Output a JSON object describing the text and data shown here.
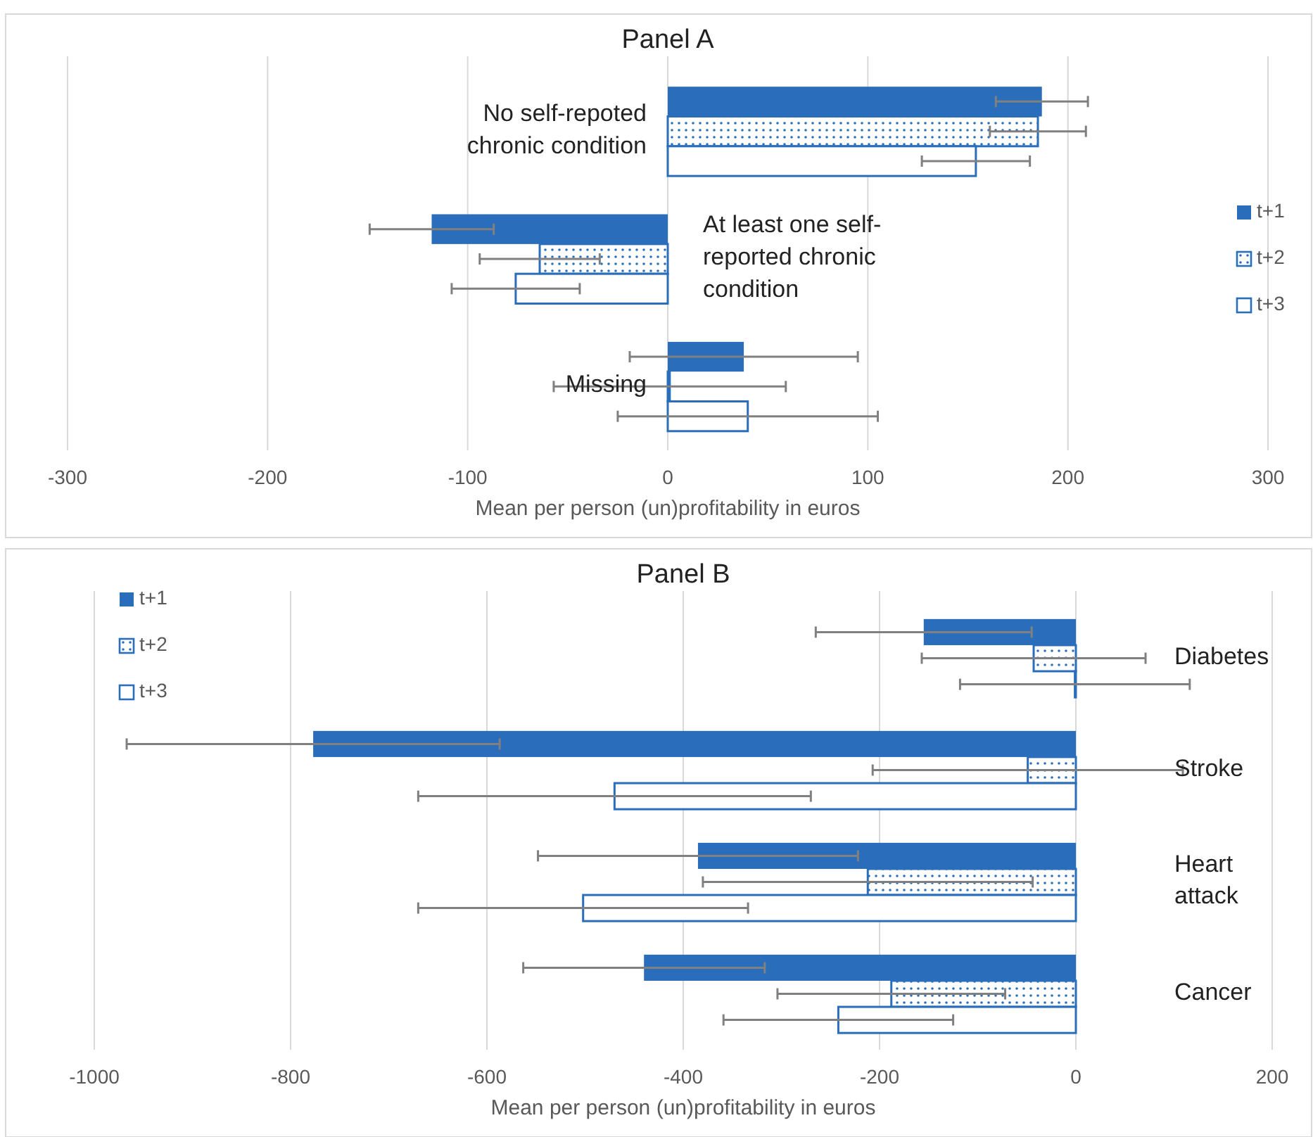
{
  "chart_data": [
    {
      "type": "bar",
      "orientation": "horizontal",
      "title": "Panel A",
      "xlabel": "Mean per person (un)profitability in euros",
      "categories": [
        "No self-repoted chronic condition",
        "At least one self-reported chronic condition",
        "Missing"
      ],
      "series": [
        {
          "name": "t+1",
          "color": "#2a6ebb",
          "values": [
            187,
            -118,
            38
          ],
          "errors": [
            23,
            31,
            57
          ]
        },
        {
          "name": "t+2",
          "color": "#2a6ebb",
          "values": [
            185,
            -64,
            1
          ],
          "errors": [
            24,
            30,
            58
          ]
        },
        {
          "name": "t+3",
          "color": "#2a6ebb",
          "values": [
            154,
            -76,
            40
          ],
          "errors": [
            27,
            32,
            65
          ]
        }
      ],
      "xlim": [
        -300,
        300
      ],
      "xticks": [
        -300,
        -200,
        -100,
        0,
        100,
        200,
        300
      ],
      "grid": "x",
      "legend": "right"
    },
    {
      "type": "bar",
      "orientation": "horizontal",
      "title": "Panel B",
      "xlabel": "Mean per person (un)profitability in euros",
      "categories": [
        "Diabetes",
        "Stroke",
        "Heart attack",
        "Cancer"
      ],
      "series": [
        {
          "name": "t+1",
          "color": "#2a6ebb",
          "values": [
            -155,
            -777,
            -385,
            -440
          ],
          "errors": [
            110,
            190,
            163,
            123
          ]
        },
        {
          "name": "t+2",
          "color": "#2a6ebb",
          "values": [
            -43,
            -49,
            -212,
            -188
          ],
          "errors": [
            114,
            158,
            168,
            116
          ]
        },
        {
          "name": "t+3",
          "color": "#2a6ebb",
          "values": [
            -1,
            -470,
            -502,
            -242
          ],
          "errors": [
            117,
            200,
            168,
            117
          ]
        }
      ],
      "xlim": [
        -1000,
        200
      ],
      "xticks": [
        -1000,
        -800,
        -600,
        -400,
        -200,
        0,
        200
      ],
      "grid": "x",
      "legend": "top left"
    }
  ]
}
